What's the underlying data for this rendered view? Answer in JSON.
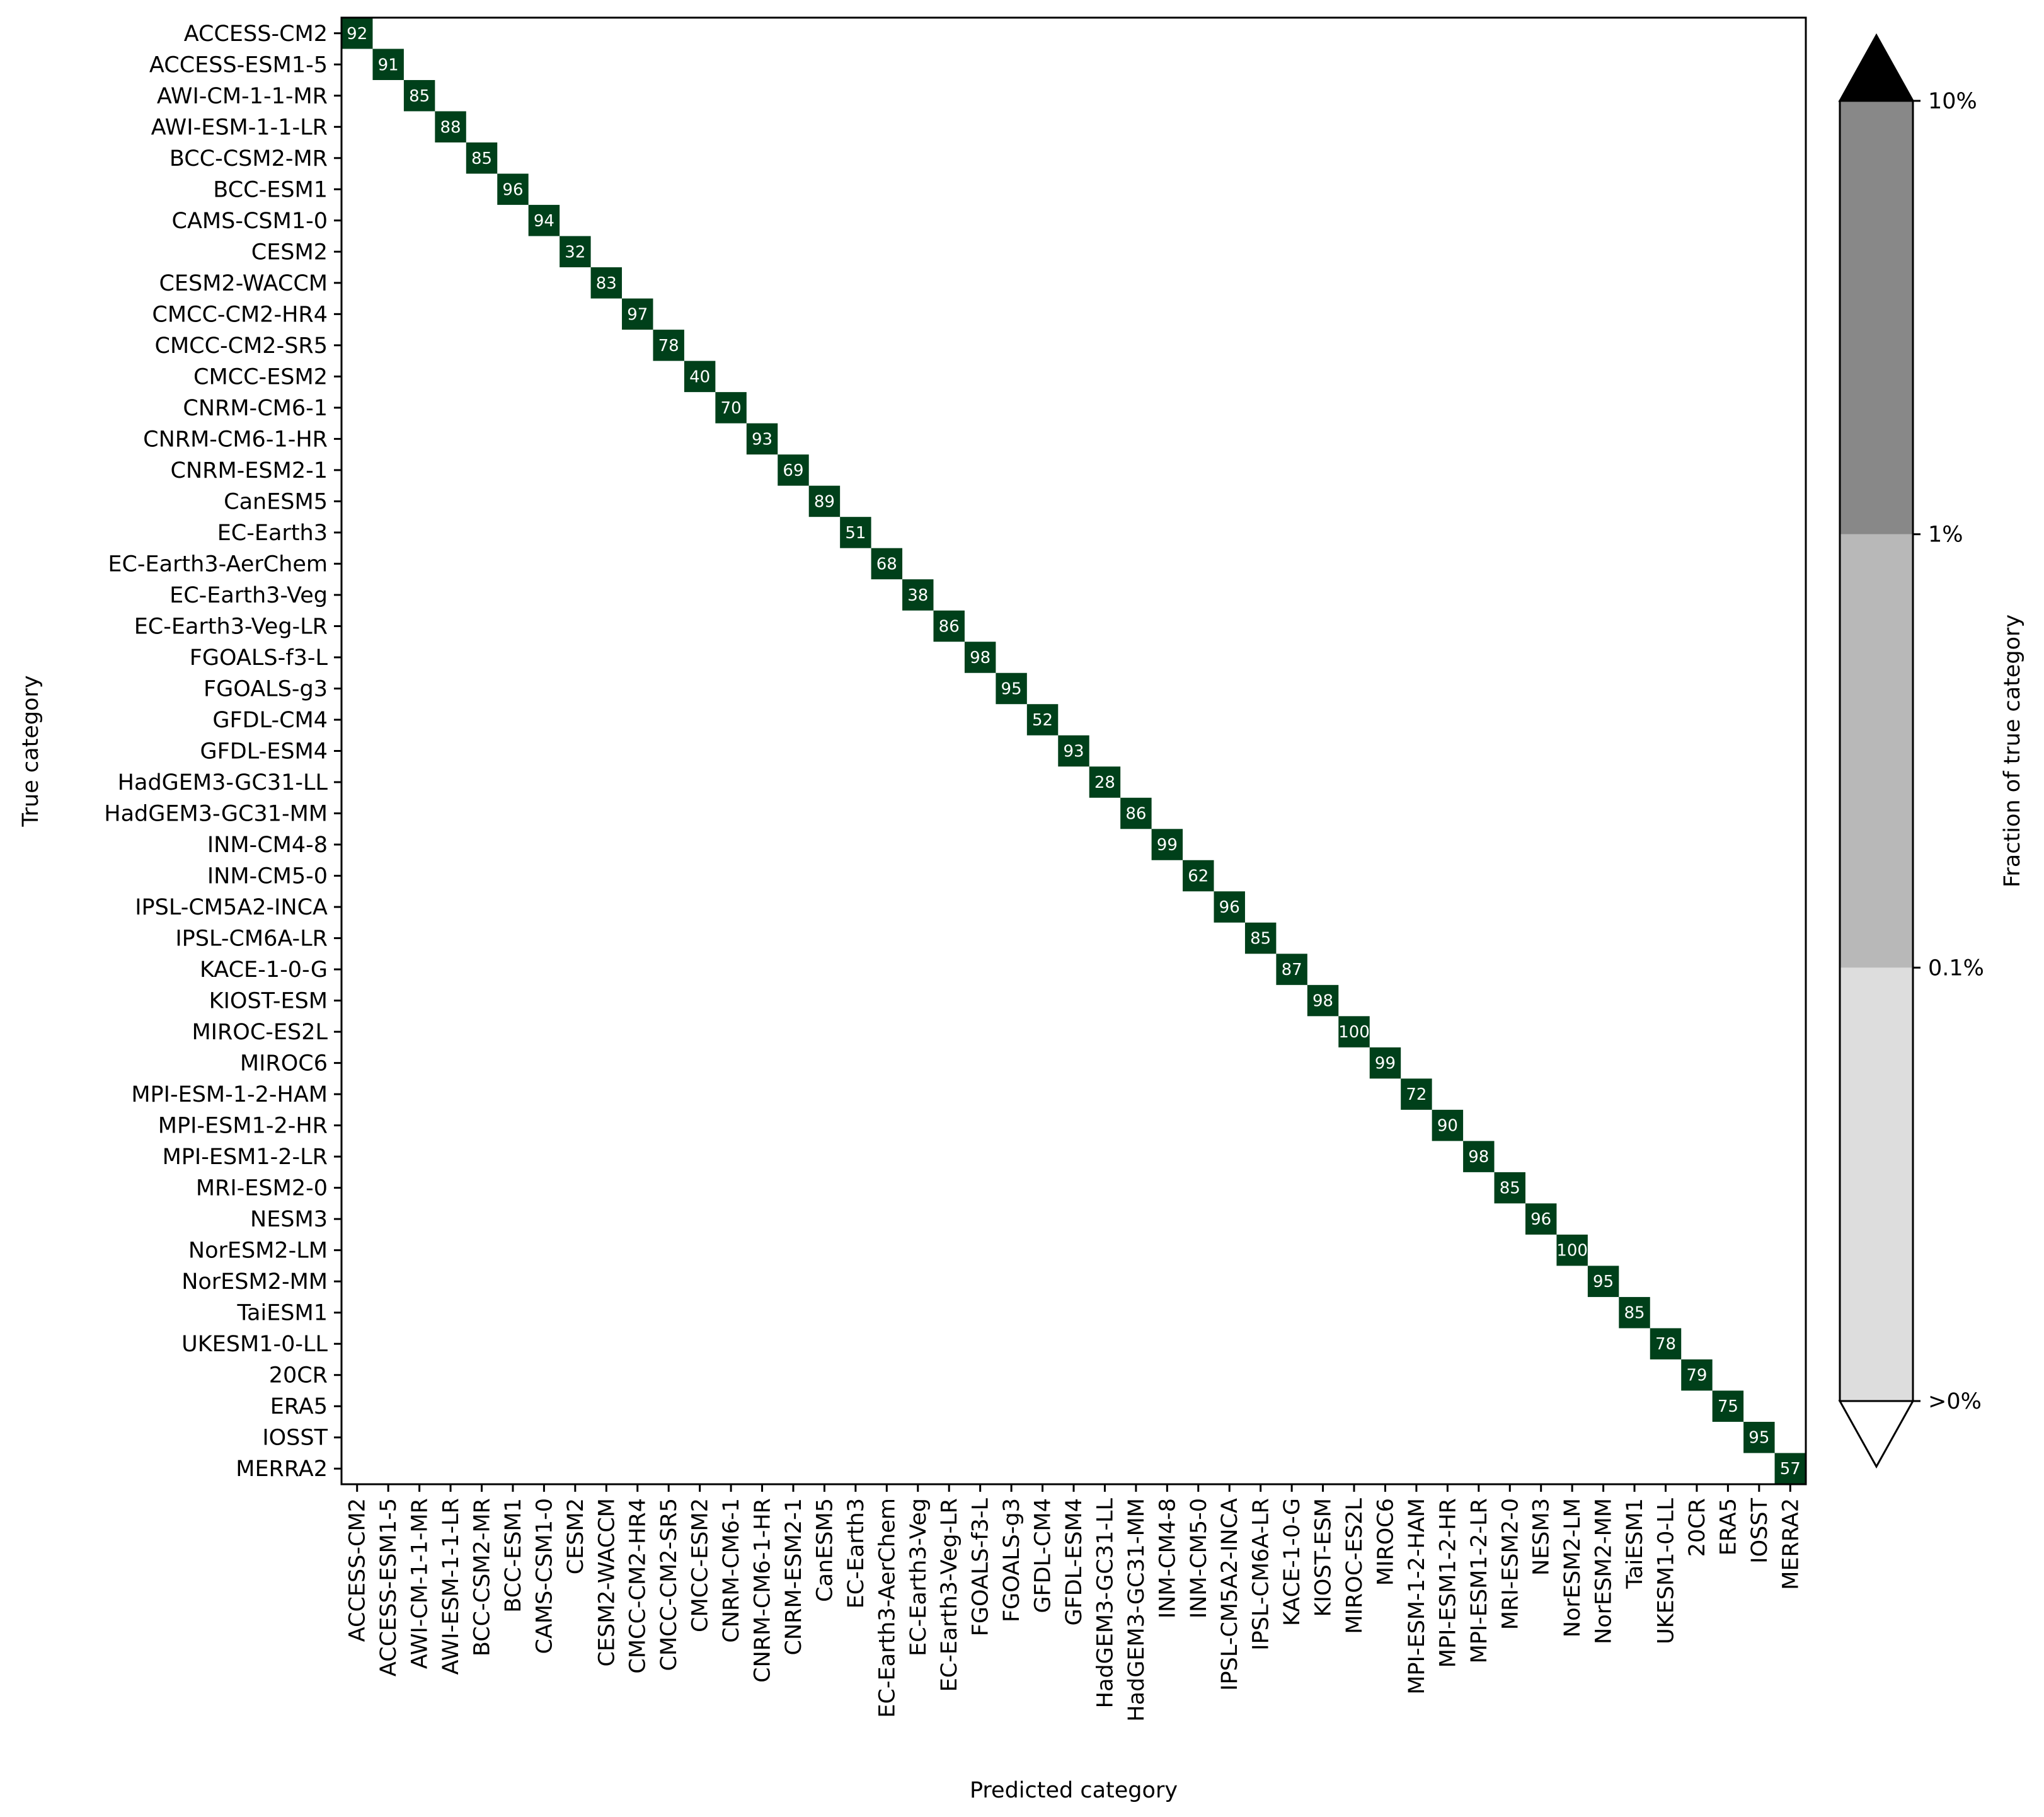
{
  "chart_data": {
    "type": "heatmap",
    "xlabel": "Predicted category",
    "ylabel": "True category",
    "categories": [
      "ACCESS-CM2",
      "ACCESS-ESM1-5",
      "AWI-CM-1-1-MR",
      "AWI-ESM-1-1-LR",
      "BCC-CSM2-MR",
      "BCC-ESM1",
      "CAMS-CSM1-0",
      "CESM2",
      "CESM2-WACCM",
      "CMCC-CM2-HR4",
      "CMCC-CM2-SR5",
      "CMCC-ESM2",
      "CNRM-CM6-1",
      "CNRM-CM6-1-HR",
      "CNRM-ESM2-1",
      "CanESM5",
      "EC-Earth3",
      "EC-Earth3-AerChem",
      "EC-Earth3-Veg",
      "EC-Earth3-Veg-LR",
      "FGOALS-f3-L",
      "FGOALS-g3",
      "GFDL-CM4",
      "GFDL-ESM4",
      "HadGEM3-GC31-LL",
      "HadGEM3-GC31-MM",
      "INM-CM4-8",
      "INM-CM5-0",
      "IPSL-CM5A2-INCA",
      "IPSL-CM6A-LR",
      "KACE-1-0-G",
      "KIOST-ESM",
      "MIROC-ES2L",
      "MIROC6",
      "MPI-ESM-1-2-HAM",
      "MPI-ESM1-2-HR",
      "MPI-ESM1-2-LR",
      "MRI-ESM2-0",
      "NESM3",
      "NorESM2-LM",
      "NorESM2-MM",
      "TaiESM1",
      "UKESM1-0-LL",
      "20CR",
      "ERA5",
      "IOSST",
      "MERRA2"
    ],
    "diagonal_values": [
      92,
      91,
      85,
      88,
      85,
      96,
      94,
      32,
      83,
      97,
      78,
      40,
      70,
      93,
      69,
      89,
      51,
      68,
      38,
      86,
      98,
      95,
      52,
      93,
      28,
      86,
      99,
      62,
      96,
      85,
      87,
      98,
      100,
      99,
      72,
      90,
      98,
      85,
      96,
      100,
      95,
      85,
      78,
      79,
      75,
      95,
      57
    ],
    "diagonal_color": "#00401a",
    "grid": false,
    "colorbar": {
      "label": "Fraction of true category",
      "ticks": [
        ">0%",
        "0.1%",
        "1%",
        "10%"
      ],
      "colors": [
        "#dddddd",
        "#b8b8b8",
        "#888888"
      ],
      "extend_min_color": "#ffffff",
      "extend_max_color": "#000000"
    }
  }
}
